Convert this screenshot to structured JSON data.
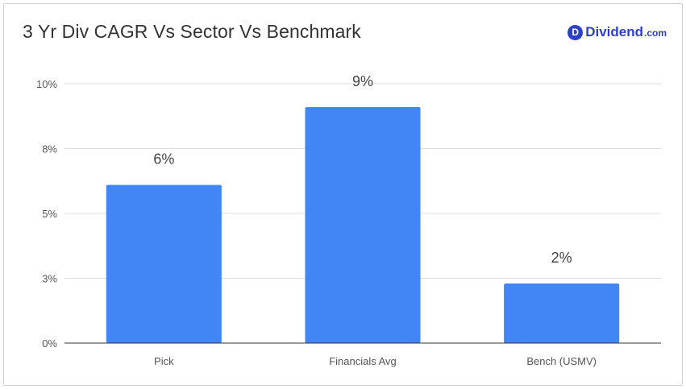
{
  "title": "3 Yr Div CAGR Vs Sector Vs Benchmark",
  "brand": {
    "badge": "D",
    "name": "Dividend",
    "suffix": ".com"
  },
  "colors": {
    "bar": "#4285f4",
    "grid": "#dcdcdc",
    "axis": "#333333",
    "text": "#555555"
  },
  "chart_data": {
    "type": "bar",
    "categories": [
      "Pick",
      "Financials Avg",
      "Bench (USMV)"
    ],
    "values": [
      6.1,
      9.1,
      2.3
    ],
    "data_labels": [
      "6%",
      "9%",
      "2%"
    ],
    "y_ticks": [
      0,
      2.5,
      5,
      7.5,
      10
    ],
    "y_tick_labels": [
      "0%",
      "3%",
      "5%",
      "8%",
      "10%"
    ],
    "ylim": [
      0,
      10
    ],
    "grid": true,
    "xlabel": "",
    "ylabel": ""
  }
}
